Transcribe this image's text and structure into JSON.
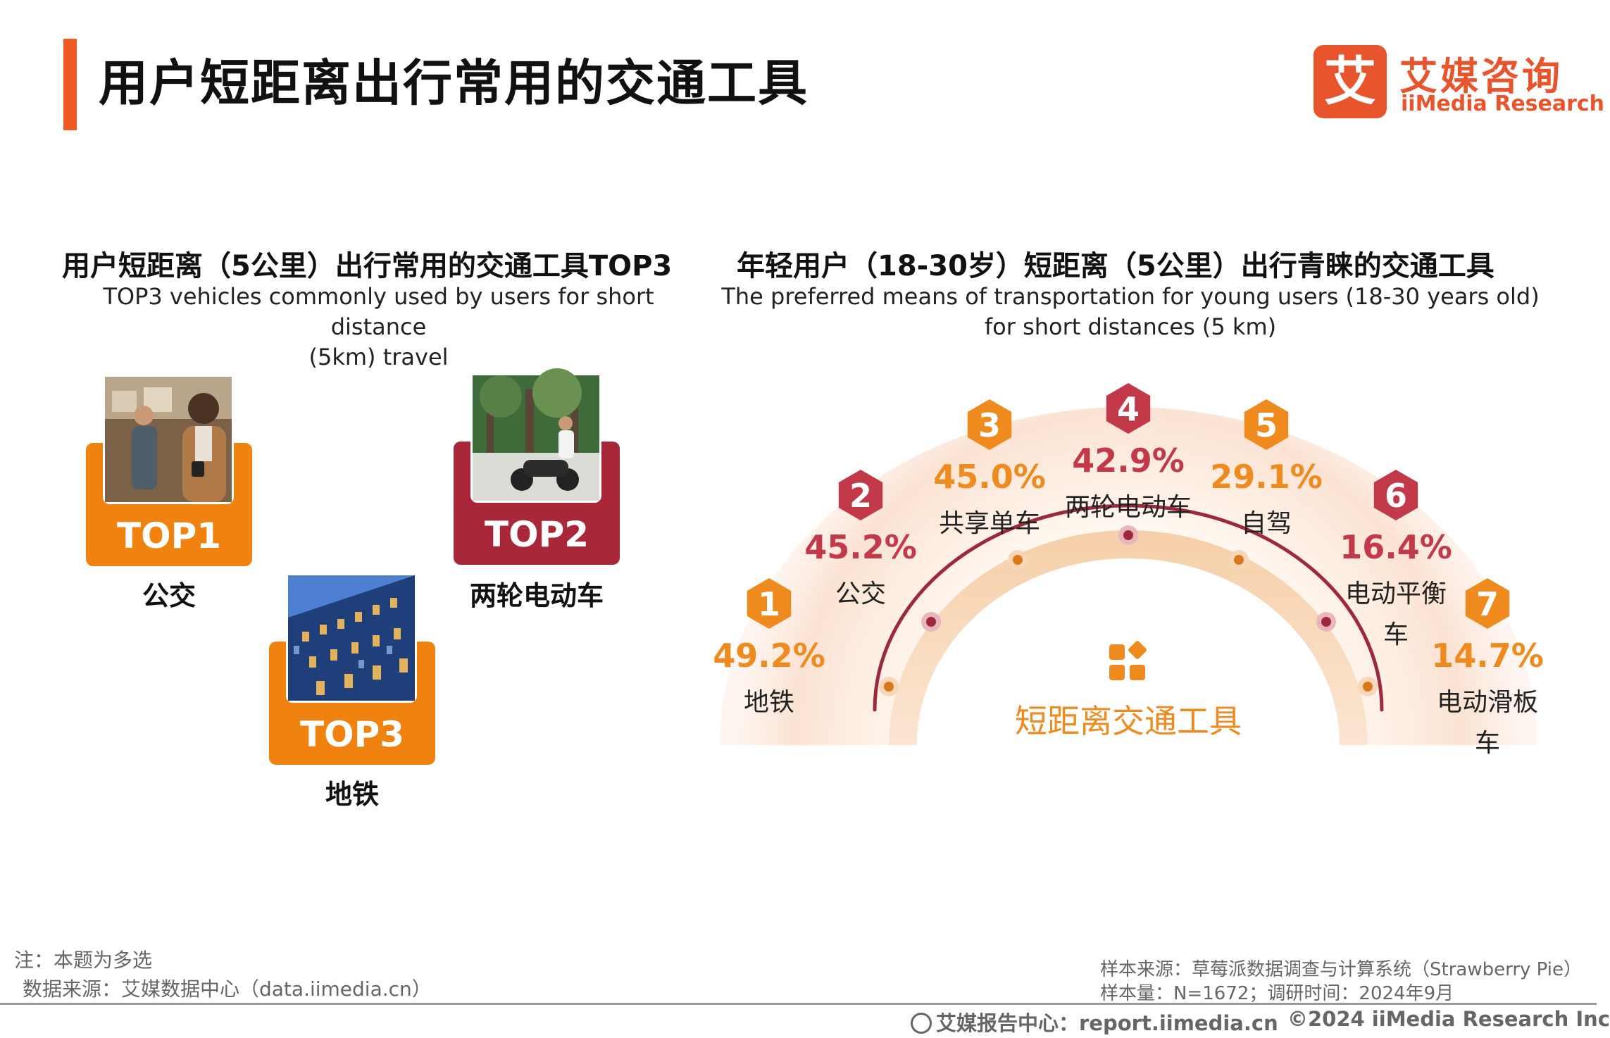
{
  "header": {
    "title": "用户短距离出行常用的交通工具",
    "brand_mark": "艾",
    "brand_cn": "艾媒咨询",
    "brand_en": "iiMedia Research",
    "accent_color": "#ef5a24"
  },
  "left_section": {
    "title_cn": "用户短距离（5公里）出行常用的交通工具TOP3",
    "title_en_line1": "TOP3 vehicles commonly used by users for short distance",
    "title_en_line2": "(5km) travel",
    "cards": [
      {
        "rank": "TOP1",
        "label": "公交",
        "color": "#f0820f",
        "photo": "bus-passengers-photo"
      },
      {
        "rank": "TOP2",
        "label": "两轮电动车",
        "color": "#a8283a",
        "photo": "electric-scooter-photo"
      },
      {
        "rank": "TOP3",
        "label": "地铁",
        "color": "#f0820f",
        "photo": "building-photo"
      }
    ]
  },
  "right_section": {
    "title_cn": "年轻用户（18-30岁）短距离（5公里）出行青睐的交通工具",
    "title_en_line1": "The preferred means of transportation for young users (18-30 years old)",
    "title_en_line2": "for short distances (5 km)",
    "center_label": "短距离交通工具",
    "center_icon": "grid-icon",
    "orange_color": "#ef8a1e",
    "red_color": "#c23a4a"
  },
  "chart_data": {
    "type": "radial-ranking",
    "title": "年轻用户（18-30岁）短距离（5公里）出行青睐的交通工具",
    "categories": [
      "地铁",
      "公交",
      "共享单车",
      "两轮电动车",
      "自驾",
      "电动平衡车",
      "电动滑板车"
    ],
    "ranks": [
      "1",
      "2",
      "3",
      "4",
      "5",
      "6",
      "7"
    ],
    "values": [
      49.2,
      45.2,
      45.0,
      42.9,
      29.1,
      16.4,
      14.7
    ],
    "value_labels": [
      "49.2%",
      "45.2%",
      "45.0%",
      "42.9%",
      "29.1%",
      "16.4%",
      "14.7%"
    ],
    "unit": "%"
  },
  "footer": {
    "note": "注：本题为多选",
    "data_source": "数据来源：艾媒数据中心（data.iimedia.cn）",
    "sample_source": "样本来源：草莓派数据调查与计算系统（Strawberry Pie）",
    "sample_size": "样本量：N=1672；调研时间：2024年9月",
    "report_center": "艾媒报告中心：report.iimedia.cn",
    "copyright": "©2024  iiMedia Research  Inc"
  }
}
